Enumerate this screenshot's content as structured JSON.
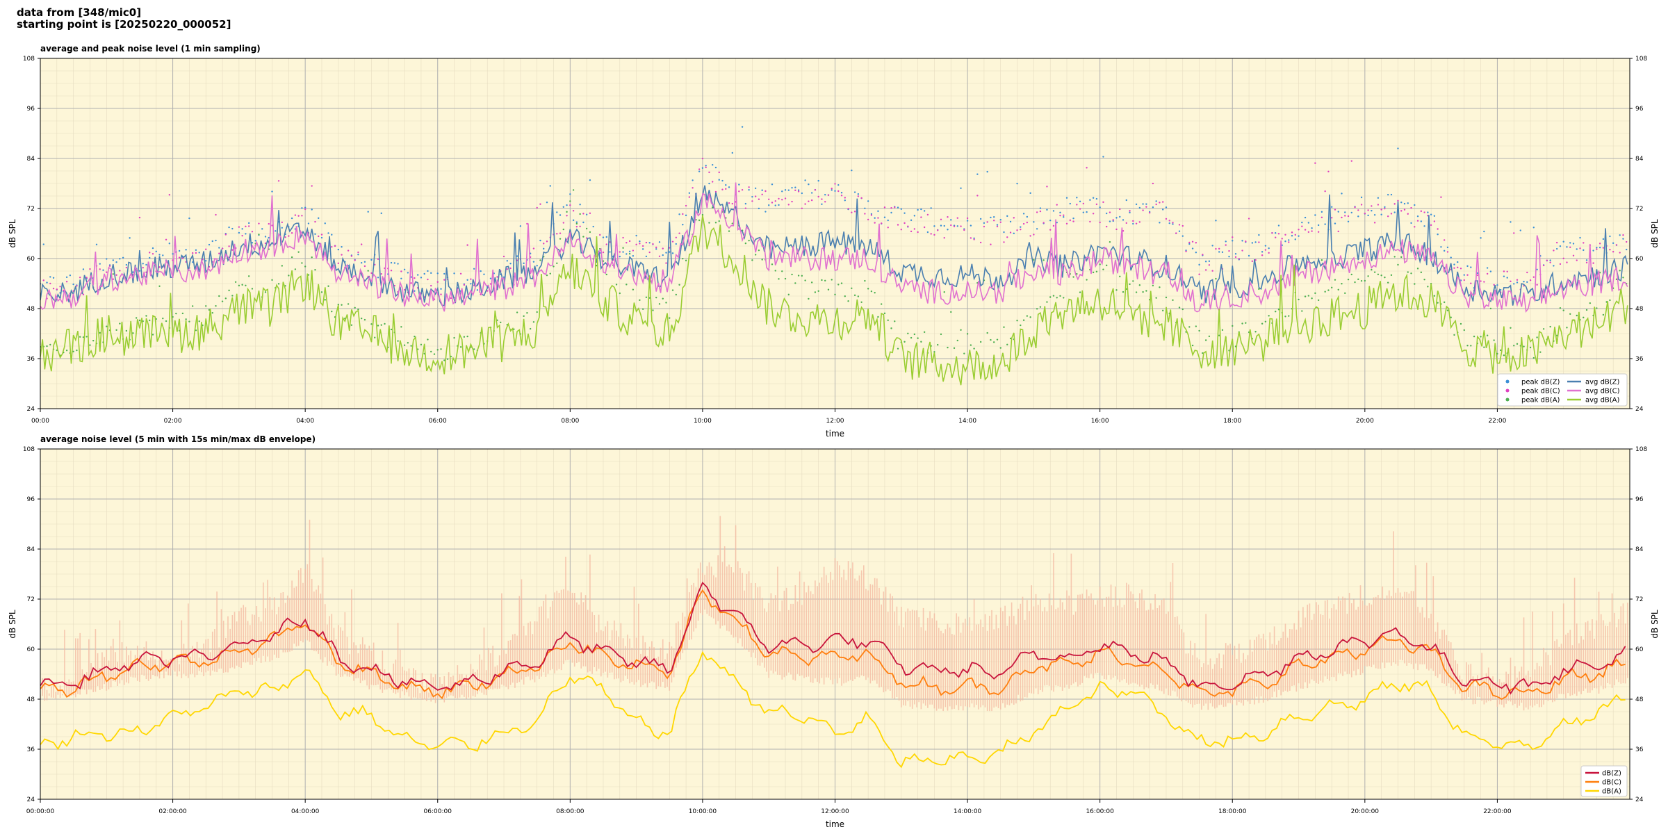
{
  "header": {
    "line1": "data from [348/mic0]",
    "line2": "starting point is [20250220_000052]"
  },
  "colors": {
    "plot_background": "#fdf6d8",
    "peak_z": "#3a8fd6",
    "peak_c": "#e040c0",
    "peak_a": "#4caf50",
    "avg_z": "#4a7fb0",
    "avg_c": "#e070d0",
    "avg_a": "#9acd32",
    "dbz": "#c8143c",
    "dbc": "#ff7f0e",
    "dba": "#ffd700",
    "envelope": "#f4b8a0"
  },
  "chart_data": [
    {
      "type": "line",
      "title": "average and peak noise level (1 min sampling)",
      "xlabel": "time",
      "ylabel": "dB SPL",
      "ylim": [
        24,
        108
      ],
      "yticks": [
        "24",
        "36",
        "48",
        "60",
        "72",
        "84",
        "96",
        "108"
      ],
      "xlim_hours": [
        0,
        24
      ],
      "xticks": [
        "00:00",
        "02:00",
        "04:00",
        "06:00",
        "08:00",
        "10:00",
        "12:00",
        "14:00",
        "16:00",
        "18:00",
        "20:00",
        "22:00"
      ],
      "grid": true,
      "legend_position": "lower-right",
      "legend": [
        "peak dB(Z)",
        "peak dB(C)",
        "peak dB(A)",
        "avg dB(Z)",
        "avg dB(C)",
        "avg dB(A)"
      ],
      "x_hours": [
        0,
        0.5,
        1,
        1.5,
        2,
        2.5,
        3,
        3.5,
        4,
        4.5,
        5,
        5.5,
        6,
        6.5,
        7,
        7.5,
        8,
        8.5,
        9,
        9.5,
        10,
        10.5,
        11,
        11.5,
        12,
        12.5,
        13,
        13.5,
        14,
        14.5,
        15,
        15.5,
        16,
        16.5,
        17,
        17.5,
        18,
        18.5,
        19,
        19.5,
        20,
        20.5,
        21,
        21.5,
        22,
        22.5,
        23,
        23.5,
        24
      ],
      "series": [
        {
          "name": "peak dB(Z)",
          "values": [
            53,
            54,
            58,
            60,
            61,
            61,
            66,
            66,
            71,
            62,
            59,
            55,
            54,
            55,
            56,
            61,
            73,
            63,
            63,
            62,
            82,
            76,
            74,
            76,
            76,
            72,
            70,
            69,
            68,
            67,
            69,
            72,
            72,
            70,
            72,
            60,
            62,
            64,
            68,
            70,
            72,
            73,
            69,
            56,
            55,
            55,
            63,
            62,
            65
          ]
        },
        {
          "name": "peak dB(C)",
          "values": [
            52,
            53,
            57,
            59,
            60,
            60,
            65,
            66,
            70,
            61,
            58,
            54,
            53,
            54,
            55,
            60,
            72,
            62,
            62,
            61,
            81,
            75,
            73,
            75,
            75,
            71,
            69,
            68,
            67,
            66,
            68,
            71,
            71,
            69,
            71,
            59,
            61,
            63,
            67,
            69,
            71,
            72,
            68,
            55,
            54,
            54,
            62,
            61,
            64
          ]
        },
        {
          "name": "peak dB(A)",
          "values": [
            38,
            40,
            43,
            43,
            45,
            46,
            52,
            54,
            60,
            47,
            44,
            39,
            38,
            40,
            43,
            46,
            72,
            58,
            50,
            47,
            72,
            66,
            56,
            53,
            52,
            52,
            40,
            40,
            40,
            40,
            48,
            54,
            56,
            53,
            50,
            40,
            41,
            43,
            48,
            52,
            55,
            58,
            55,
            40,
            38,
            38,
            45,
            48,
            55
          ]
        },
        {
          "name": "avg dB(Z)",
          "values": [
            51,
            52,
            56,
            57,
            58,
            59,
            63,
            64,
            67,
            58,
            56,
            52,
            51,
            52,
            55,
            57,
            65,
            60,
            57,
            55,
            75,
            70,
            62,
            63,
            64,
            63,
            57,
            56,
            56,
            55,
            60,
            58,
            62,
            60,
            58,
            52,
            53,
            55,
            59,
            60,
            62,
            64,
            61,
            53,
            52,
            51,
            55,
            56,
            58
          ]
        },
        {
          "name": "avg dB(C)",
          "values": [
            50,
            51,
            55,
            56,
            57,
            57,
            62,
            63,
            66,
            56,
            54,
            51,
            50,
            51,
            53,
            56,
            64,
            59,
            56,
            54,
            74,
            69,
            60,
            60,
            60,
            60,
            53,
            52,
            52,
            52,
            57,
            56,
            60,
            58,
            56,
            49,
            51,
            52,
            56,
            58,
            60,
            62,
            60,
            51,
            50,
            49,
            53,
            54,
            56
          ]
        },
        {
          "name": "avg dB(A)",
          "values": [
            37,
            39,
            42,
            41,
            42,
            43,
            48,
            48,
            55,
            44,
            42,
            38,
            37,
            38,
            40,
            43,
            58,
            50,
            45,
            42,
            68,
            60,
            48,
            46,
            45,
            47,
            36,
            35,
            34,
            35,
            43,
            48,
            50,
            47,
            44,
            38,
            39,
            40,
            44,
            46,
            48,
            52,
            50,
            39,
            37,
            37,
            42,
            44,
            50
          ]
        }
      ]
    },
    {
      "type": "line",
      "title": "average noise level (5 min with 15s min/max dB envelope)",
      "xlabel": "time",
      "ylabel": "dB SPL",
      "ylim": [
        24,
        108
      ],
      "yticks": [
        "24",
        "36",
        "48",
        "60",
        "72",
        "84",
        "96",
        "108"
      ],
      "xlim_hours": [
        0,
        24
      ],
      "xticks": [
        "00:00:00",
        "02:00:00",
        "04:00:00",
        "06:00:00",
        "08:00:00",
        "10:00:00",
        "12:00:00",
        "14:00:00",
        "16:00:00",
        "18:00:00",
        "20:00:00",
        "22:00:00"
      ],
      "grid": true,
      "legend_position": "lower-right",
      "legend": [
        "dB(Z)",
        "dB(C)",
        "dB(A)"
      ],
      "x_hours": [
        0,
        0.5,
        1,
        1.5,
        2,
        2.5,
        3,
        3.5,
        4,
        4.5,
        5,
        5.5,
        6,
        6.5,
        7,
        7.5,
        8,
        8.5,
        9,
        9.5,
        10,
        10.5,
        11,
        11.5,
        12,
        12.5,
        13,
        13.5,
        14,
        14.5,
        15,
        15.5,
        16,
        16.5,
        17,
        17.5,
        18,
        18.5,
        19,
        19.5,
        20,
        20.5,
        21,
        21.5,
        22,
        22.5,
        23,
        23.5,
        24
      ],
      "series": [
        {
          "name": "dB(Z)",
          "values": [
            51,
            52,
            55,
            57,
            58,
            58,
            61,
            63,
            68,
            58,
            55,
            52,
            51,
            52,
            55,
            57,
            63,
            59,
            57,
            55,
            75,
            68,
            61,
            61,
            62,
            62,
            56,
            55,
            55,
            54,
            59,
            58,
            61,
            59,
            57,
            51,
            52,
            54,
            58,
            60,
            62,
            64,
            60,
            53,
            52,
            51,
            55,
            56,
            59
          ]
        },
        {
          "name": "dB(C)",
          "values": [
            50,
            51,
            54,
            56,
            57,
            57,
            60,
            62,
            67,
            57,
            54,
            51,
            50,
            51,
            54,
            56,
            62,
            58,
            56,
            54,
            74,
            67,
            59,
            58,
            58,
            59,
            52,
            51,
            51,
            51,
            56,
            56,
            59,
            57,
            55,
            49,
            50,
            52,
            56,
            58,
            60,
            62,
            59,
            51,
            50,
            49,
            53,
            54,
            57
          ]
        },
        {
          "name": "dB(A)",
          "values": [
            37,
            39,
            40,
            40,
            44,
            46,
            50,
            50,
            55,
            45,
            44,
            38,
            37,
            37,
            40,
            43,
            54,
            50,
            42,
            40,
            60,
            52,
            45,
            44,
            40,
            43,
            33,
            33,
            34,
            35,
            40,
            46,
            50,
            50,
            44,
            38,
            38,
            40,
            44,
            46,
            48,
            52,
            50,
            39,
            37,
            37,
            42,
            44,
            50
          ]
        }
      ],
      "envelope": {
        "name": "15s min/max envelope",
        "max": [
          54,
          55,
          63,
          62,
          62,
          63,
          71,
          73,
          82,
          66,
          62,
          56,
          54,
          58,
          63,
          70,
          78,
          68,
          65,
          63,
          83,
          82,
          74,
          76,
          82,
          80,
          71,
          70,
          68,
          70,
          74,
          73,
          76,
          76,
          72,
          60,
          62,
          64,
          70,
          73,
          76,
          77,
          72,
          57,
          56,
          56,
          66,
          68,
          72
        ],
        "min": [
          49,
          50,
          52,
          54,
          55,
          55,
          57,
          59,
          63,
          55,
          52,
          50,
          49,
          50,
          52,
          54,
          58,
          55,
          53,
          52,
          70,
          64,
          55,
          54,
          53,
          54,
          48,
          47,
          47,
          47,
          51,
          52,
          55,
          53,
          51,
          47,
          48,
          49,
          52,
          54,
          56,
          58,
          56,
          49,
          48,
          47,
          50,
          51,
          54
        ]
      }
    }
  ]
}
